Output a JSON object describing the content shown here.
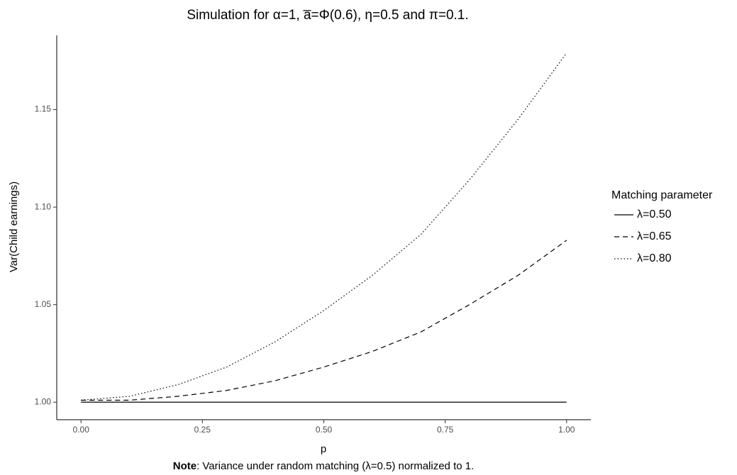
{
  "chart_data": {
    "type": "line",
    "title": "Simulation for α=1, a̅=Φ(0.6), η=0.5 and π=0.1.",
    "x_label": "p",
    "y_label": "Var(Child earnings)",
    "note_label": "Note",
    "note_text": ": Variance under random matching (λ=0.5) normalized to 1.",
    "legend_title": "Matching parameter",
    "legend_position": "right",
    "x": [
      0,
      0.1,
      0.2,
      0.3,
      0.4,
      0.5,
      0.6,
      0.7,
      0.8,
      0.9,
      1.0
    ],
    "series": [
      {
        "name": "λ=0.50",
        "color": "#000000",
        "linestyle": "solid",
        "values": [
          1.0,
          1.0,
          1.0,
          1.0,
          1.0,
          1.0,
          1.0,
          1.0,
          1.0,
          1.0,
          1.0
        ]
      },
      {
        "name": "λ=0.65",
        "color": "#000000",
        "linestyle": "dashed",
        "values": [
          1.001,
          1.001,
          1.003,
          1.006,
          1.011,
          1.018,
          1.026,
          1.036,
          1.05,
          1.065,
          1.083
        ]
      },
      {
        "name": "λ=0.80",
        "color": "#000000",
        "linestyle": "dotted",
        "values": [
          1.001,
          1.003,
          1.009,
          1.018,
          1.031,
          1.047,
          1.065,
          1.086,
          1.114,
          1.145,
          1.179
        ]
      }
    ],
    "xlim": [
      -0.05,
      1.05
    ],
    "xticks": [
      {
        "value": 0,
        "label": "0.00"
      },
      {
        "value": 0.25,
        "label": "0.25"
      },
      {
        "value": 0.5,
        "label": "0.50"
      },
      {
        "value": 0.75,
        "label": "0.75"
      },
      {
        "value": 1,
        "label": "1.00"
      }
    ],
    "ylim": [
      0.991,
      1.188
    ],
    "yticks": [
      {
        "value": 1,
        "label": "1.00"
      },
      {
        "value": 1.05,
        "label": "1.05"
      },
      {
        "value": 1.1,
        "label": "1.10"
      },
      {
        "value": 1.15,
        "label": "1.15"
      }
    ],
    "grid": false
  }
}
